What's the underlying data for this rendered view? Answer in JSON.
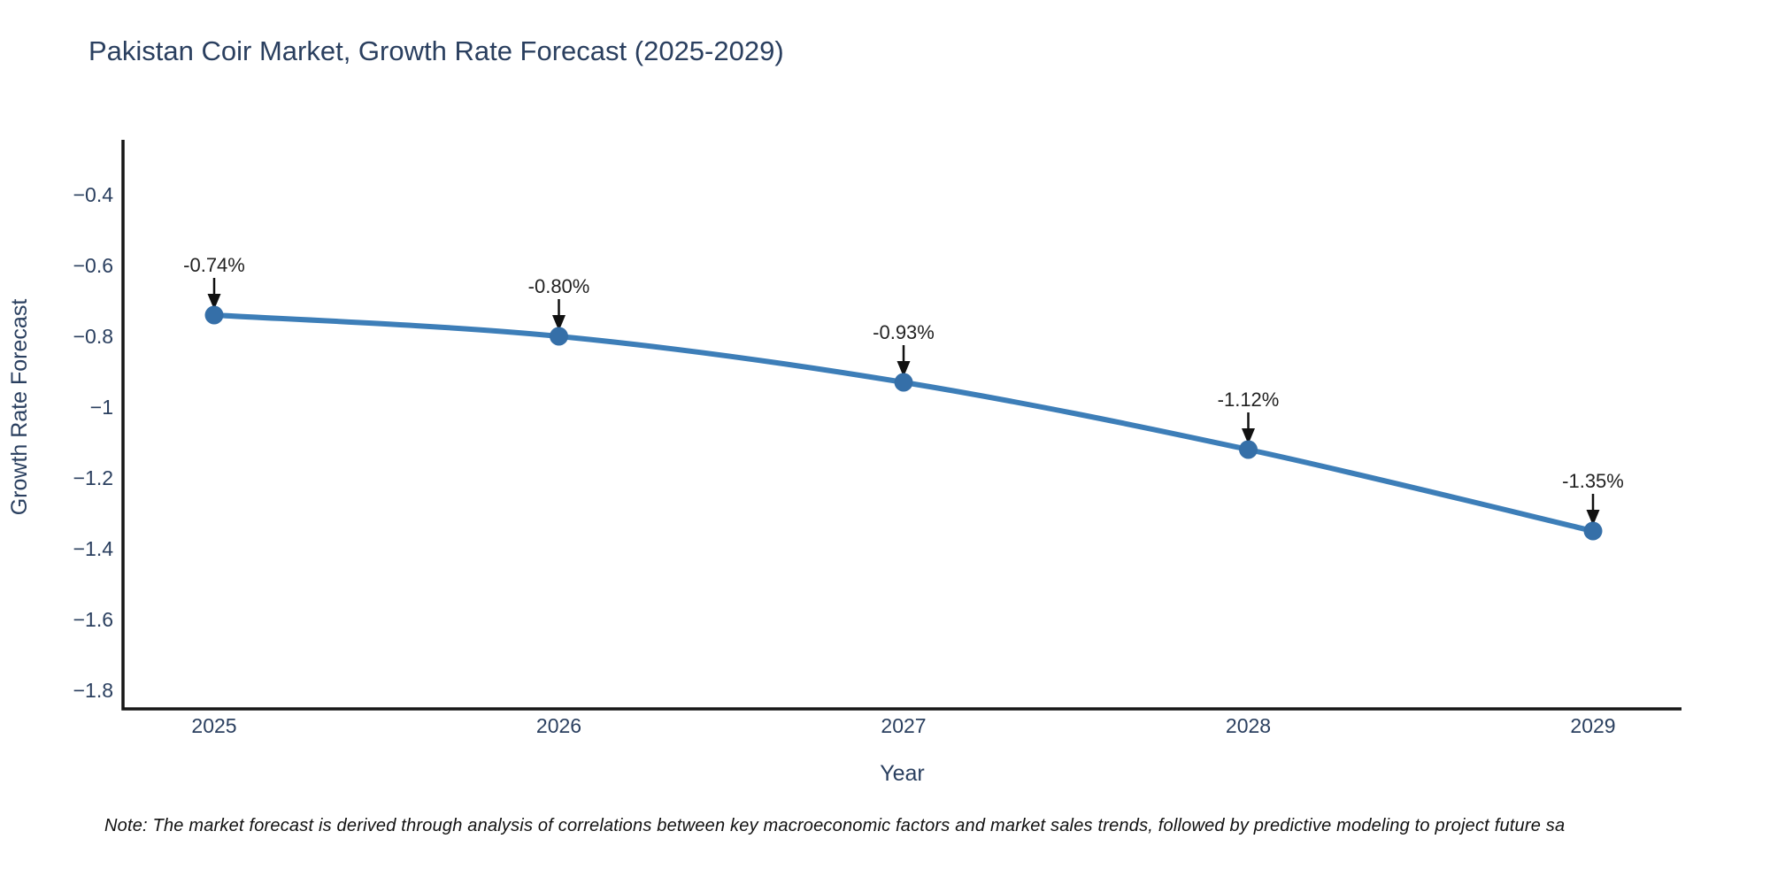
{
  "title": "Pakistan Coir Market, Growth Rate Forecast (2025-2029)",
  "note": "Note: The market forecast is derived through analysis of correlations between key macroeconomic factors and market sales trends, followed by predictive modeling to project future sa",
  "colors": {
    "background": "#ffffff",
    "title_text": "#2a3f5f",
    "axis_text": "#2a3f5f",
    "axis_line": "#161616",
    "line": "#3d7eb8",
    "marker": "#356fa8",
    "annotation_text": "#222222",
    "arrow": "#111111",
    "note_text": "#111111"
  },
  "chart_data": {
    "type": "line",
    "title": "Pakistan Coir Market, Growth Rate Forecast (2025-2029)",
    "xlabel": "Year",
    "ylabel": "Growth Rate Forecast",
    "x": [
      2025,
      2026,
      2027,
      2028,
      2029
    ],
    "y": [
      -0.74,
      -0.8,
      -0.93,
      -1.12,
      -1.35
    ],
    "point_labels": [
      "-0.74%",
      "-0.80%",
      "-0.93%",
      "-1.12%",
      "-1.35%"
    ],
    "xtick_labels": [
      "2025",
      "2026",
      "2027",
      "2028",
      "2029"
    ],
    "ytick_values": [
      -0.4,
      -0.6,
      -0.8,
      -1.0,
      -1.2,
      -1.4,
      -1.6,
      -1.8
    ],
    "ytick_labels": [
      "−0.4",
      "−0.6",
      "−0.8",
      "−1",
      "−1.2",
      "−1.4",
      "−1.6",
      "−1.8"
    ],
    "xlim": [
      2024.73,
      2029.26
    ],
    "ylim": [
      -1.855,
      -0.25
    ],
    "grid": false,
    "legend_visible": false,
    "line_width": 6,
    "marker_diameter": 21,
    "annotation_style": "value label above each point with black arrow pointing down to marker"
  }
}
